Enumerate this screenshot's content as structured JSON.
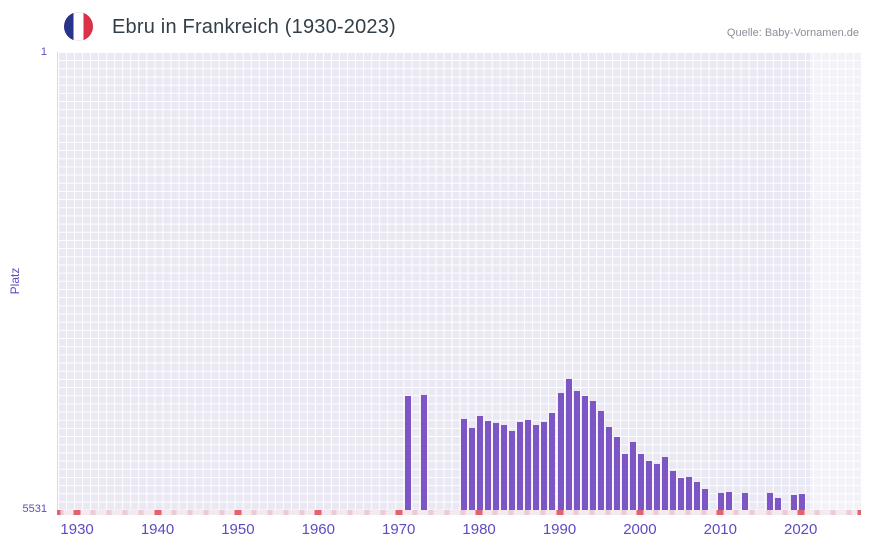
{
  "header": {
    "title": "Ebru in Frankreich (1930-2023)",
    "source": "Quelle: Baby-Vornamen.de"
  },
  "colors": {
    "bar": "#7e55c4",
    "axis_label": "#5f4bc2",
    "plot_background": "#e9e8f3",
    "grid_line": "#ffffff",
    "major_tick": "#e2636e",
    "minor_tick": "#eccbd7",
    "strip_background": "#f4e9ee",
    "title_text": "#333f48",
    "source_text": "#8d8d9b",
    "flag_blue": "#27348b",
    "flag_white": "#ffffff",
    "flag_red": "#dd3148",
    "band_overlay": "rgba(255,255,255,0.45)"
  },
  "chart_data": {
    "type": "bar",
    "title": "Ebru in Frankreich (1930-2023)",
    "xlabel": "",
    "ylabel": "Platz",
    "series_name": "Ebru",
    "legend": "off",
    "grid": "on",
    "y_axis": {
      "min": 1,
      "max": 5531,
      "inverted": true,
      "top_label": "1",
      "bottom_label": "5531"
    },
    "x_axis": {
      "min": 1927.5,
      "max": 2027.5,
      "minor_start": 1928,
      "minor_step": 2
    },
    "x_ticks": [
      1930,
      1940,
      1950,
      1960,
      1970,
      1980,
      1990,
      2000,
      2010,
      2020
    ],
    "band": {
      "from": 2021,
      "to": 2027.5
    },
    "points": [
      {
        "year": 1971,
        "rank": 4150
      },
      {
        "year": 1973,
        "rank": 4140
      },
      {
        "year": 1978,
        "rank": 4430
      },
      {
        "year": 1979,
        "rank": 4540
      },
      {
        "year": 1980,
        "rank": 4390
      },
      {
        "year": 1981,
        "rank": 4460
      },
      {
        "year": 1982,
        "rank": 4480
      },
      {
        "year": 1983,
        "rank": 4500
      },
      {
        "year": 1984,
        "rank": 4580
      },
      {
        "year": 1985,
        "rank": 4470
      },
      {
        "year": 1986,
        "rank": 4440
      },
      {
        "year": 1987,
        "rank": 4510
      },
      {
        "year": 1988,
        "rank": 4470
      },
      {
        "year": 1989,
        "rank": 4360
      },
      {
        "year": 1990,
        "rank": 4120
      },
      {
        "year": 1991,
        "rank": 3950
      },
      {
        "year": 1992,
        "rank": 4090
      },
      {
        "year": 1993,
        "rank": 4160
      },
      {
        "year": 1994,
        "rank": 4210
      },
      {
        "year": 1995,
        "rank": 4330
      },
      {
        "year": 1996,
        "rank": 4530
      },
      {
        "year": 1997,
        "rank": 4650
      },
      {
        "year": 1998,
        "rank": 4850
      },
      {
        "year": 1999,
        "rank": 4710
      },
      {
        "year": 2000,
        "rank": 4860
      },
      {
        "year": 2001,
        "rank": 4940
      },
      {
        "year": 2002,
        "rank": 4980
      },
      {
        "year": 2003,
        "rank": 4890
      },
      {
        "year": 2004,
        "rank": 5060
      },
      {
        "year": 2005,
        "rank": 5150
      },
      {
        "year": 2006,
        "rank": 5130
      },
      {
        "year": 2007,
        "rank": 5190
      },
      {
        "year": 2008,
        "rank": 5280
      },
      {
        "year": 2010,
        "rank": 5330
      },
      {
        "year": 2011,
        "rank": 5310
      },
      {
        "year": 2013,
        "rank": 5320
      },
      {
        "year": 2016,
        "rank": 5330
      },
      {
        "year": 2017,
        "rank": 5390
      },
      {
        "year": 2019,
        "rank": 5350
      },
      {
        "year": 2020,
        "rank": 5340
      }
    ]
  }
}
